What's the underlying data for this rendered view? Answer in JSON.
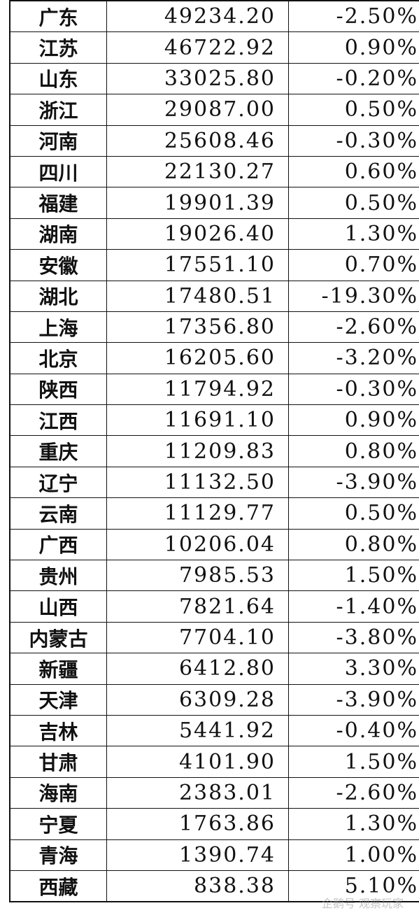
{
  "rows": [
    {
      "province": "广东",
      "gdp": "49234.20",
      "rate": "-2.50%"
    },
    {
      "province": "江苏",
      "gdp": "46722.92",
      "rate": "0.90%"
    },
    {
      "province": "山东",
      "gdp": "33025.80",
      "rate": "-0.20%"
    },
    {
      "province": "浙江",
      "gdp": "29087.00",
      "rate": "0.50%"
    },
    {
      "province": "河南",
      "gdp": "25608.46",
      "rate": "-0.30%"
    },
    {
      "province": "四川",
      "gdp": "22130.27",
      "rate": "0.60%"
    },
    {
      "province": "福建",
      "gdp": "19901.39",
      "rate": "0.50%"
    },
    {
      "province": "湖南",
      "gdp": "19026.40",
      "rate": "1.30%"
    },
    {
      "province": "安徽",
      "gdp": "17551.10",
      "rate": "0.70%"
    },
    {
      "province": "湖北",
      "gdp": "17480.51",
      "rate": "-19.30%"
    },
    {
      "province": "上海",
      "gdp": "17356.80",
      "rate": "-2.60%"
    },
    {
      "province": "北京",
      "gdp": "16205.60",
      "rate": "-3.20%"
    },
    {
      "province": "陕西",
      "gdp": "11794.92",
      "rate": "-0.30%"
    },
    {
      "province": "江西",
      "gdp": "11691.10",
      "rate": "0.90%"
    },
    {
      "province": "重庆",
      "gdp": "11209.83",
      "rate": "0.80%"
    },
    {
      "province": "辽宁",
      "gdp": "11132.50",
      "rate": "-3.90%"
    },
    {
      "province": "云南",
      "gdp": "11129.77",
      "rate": "0.50%"
    },
    {
      "province": "广西",
      "gdp": "10206.04",
      "rate": "0.80%"
    },
    {
      "province": "贵州",
      "gdp": "7985.53",
      "rate": "1.50%"
    },
    {
      "province": "山西",
      "gdp": "7821.64",
      "rate": "-1.40%"
    },
    {
      "province": "内蒙古",
      "gdp": "7704.10",
      "rate": "-3.80%"
    },
    {
      "province": "新疆",
      "gdp": "6412.80",
      "rate": "3.30%"
    },
    {
      "province": "天津",
      "gdp": "6309.28",
      "rate": "-3.90%"
    },
    {
      "province": "吉林",
      "gdp": "5441.92",
      "rate": "-0.40%"
    },
    {
      "province": "甘肃",
      "gdp": "4101.90",
      "rate": "1.50%"
    },
    {
      "province": "海南",
      "gdp": "2383.01",
      "rate": "-2.60%"
    },
    {
      "province": "宁夏",
      "gdp": "1763.86",
      "rate": "1.30%"
    },
    {
      "province": "青海",
      "gdp": "1390.74",
      "rate": "1.00%"
    },
    {
      "province": "西藏",
      "gdp": "838.38",
      "rate": "5.10%"
    }
  ],
  "watermark": "企鹅号 观察玩家"
}
